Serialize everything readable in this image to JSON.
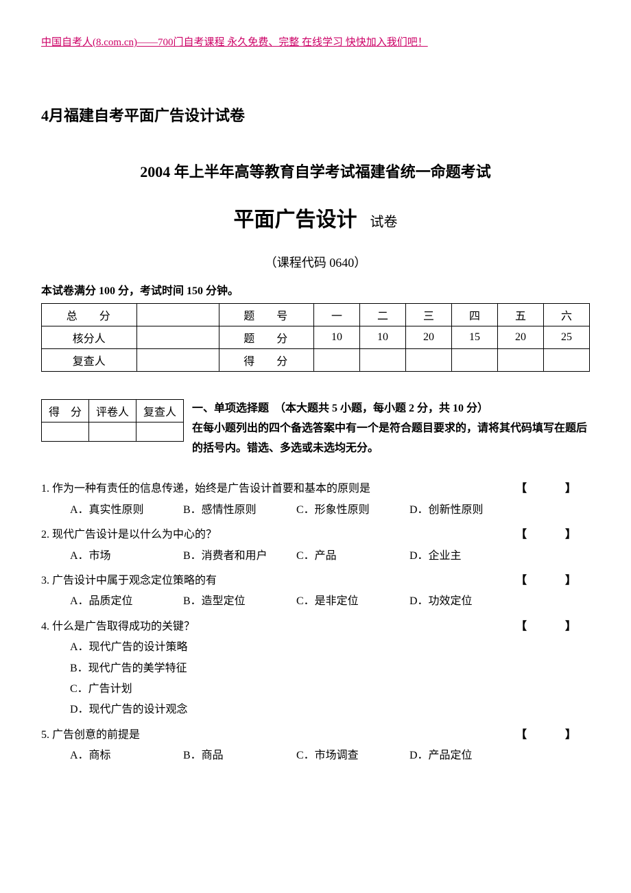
{
  "header_link": "中国自考人(8.com.cn)——700门自考课程 永久免费、完整 在线学习 快快加入我们吧！",
  "doc_title": "4月福建自考平面广告设计试卷",
  "exam_header": "2004 年上半年高等教育自学考试福建省统一命题考试",
  "subject_title": "平面广告设计",
  "paper_label": "试卷",
  "course_code": "（课程代码 0640）",
  "exam_info": "本试卷满分 100 分，考试时间 150 分钟。",
  "score_table": {
    "row1": [
      "总　分",
      "",
      "题　号",
      "一",
      "二",
      "三",
      "四",
      "五",
      "六"
    ],
    "row2": [
      "核分人",
      "",
      "题　分",
      "10",
      "10",
      "20",
      "15",
      "20",
      "25"
    ],
    "row3": [
      "复查人",
      "",
      "得　分",
      "",
      "",
      "",
      "",
      "",
      ""
    ]
  },
  "small_table": {
    "headers": [
      "得　分",
      "评卷人",
      "复查人"
    ]
  },
  "section1": {
    "title": "一、单项选择题　（本大题共 5 小题，每小题 2 分，共 10 分）",
    "instructions": "在每小题列出的四个备选答案中有一个是符合题目要求的，请将其代码填写在题后的括号内。错选、多选或未选均无分。"
  },
  "questions": [
    {
      "num": "1.",
      "text": "作为一种有责任的信息传递，始终是广告设计首要和基本的原则是",
      "options": [
        "A．真实性原则",
        "B．感情性原则",
        "C．形象性原则",
        "D．创新性原则"
      ],
      "layout": "horizontal"
    },
    {
      "num": "2.",
      "text": "现代广告设计是以什么为中心的？",
      "options": [
        "A．市场",
        "B．消费者和用户",
        "C．产品",
        "D．企业主"
      ],
      "layout": "horizontal"
    },
    {
      "num": "3.",
      "text": "广告设计中属于观念定位策略的有",
      "options": [
        "A．品质定位",
        "B．造型定位",
        "C．是非定位",
        "D．功效定位"
      ],
      "layout": "horizontal"
    },
    {
      "num": "4.",
      "text": "什么是广告取得成功的关键？",
      "options": [
        "A．现代广告的设计策略",
        "B．现代广告的美学特征",
        "C．广告计划",
        "D．现代广告的设计观念"
      ],
      "layout": "vertical"
    },
    {
      "num": "5.",
      "text": "广告创意的前提是",
      "options": [
        "A．商标",
        "B．商品",
        "C．市场调查",
        "D．产品定位"
      ],
      "layout": "horizontal"
    }
  ],
  "bracket": "【　】"
}
